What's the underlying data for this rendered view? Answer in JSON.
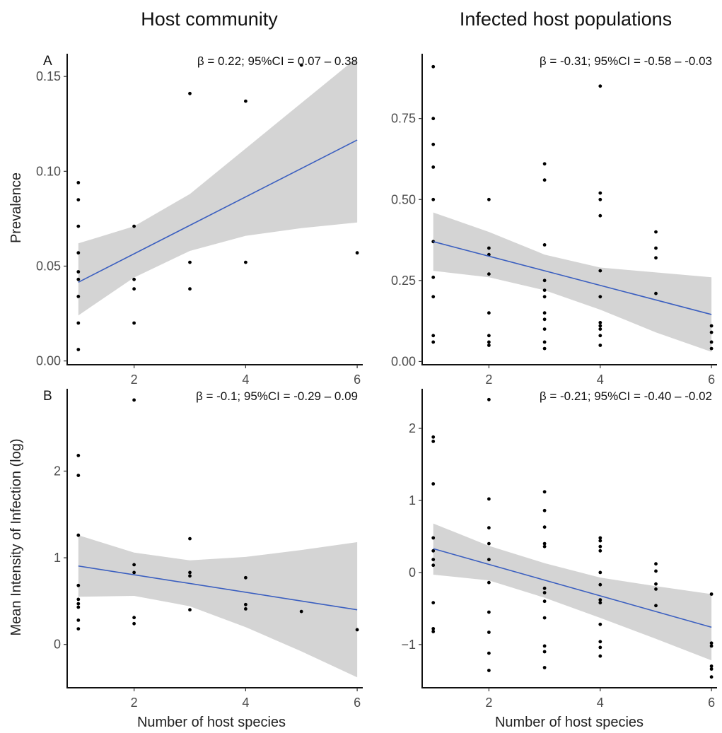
{
  "column_titles": [
    "Host community",
    "Infected host populations"
  ],
  "row_letters": [
    "A",
    "B"
  ],
  "y_axis_labels": [
    "Prevalence",
    "Mean Intensity of Infection (log)"
  ],
  "x_axis_label": "Number of host species",
  "colors": {
    "fit_line": "#3b5fc0",
    "ribbon": "#cccccc",
    "points": "#000000"
  },
  "chart_data": [
    {
      "type": "scatter",
      "panel": "A-left",
      "annotation": "β = 0.22; 95%CI = 0.07 – 0.38",
      "xlim": [
        0.8,
        6.1
      ],
      "ylim": [
        -0.002,
        0.162
      ],
      "x_ticks": [
        2,
        4,
        6
      ],
      "y_ticks": [
        0.0,
        0.05,
        0.1,
        0.15
      ],
      "y_tick_labels": [
        "0.00",
        "0.05",
        "0.10",
        "0.15"
      ],
      "x_tick_labels": [
        "2",
        "4",
        "6"
      ],
      "points": [
        [
          1,
          0.094
        ],
        [
          1,
          0.085
        ],
        [
          1,
          0.071
        ],
        [
          1,
          0.057
        ],
        [
          1,
          0.047
        ],
        [
          1,
          0.043
        ],
        [
          1,
          0.034
        ],
        [
          1,
          0.02
        ],
        [
          1,
          0.006
        ],
        [
          2,
          0.071
        ],
        [
          2,
          0.043
        ],
        [
          2,
          0.038
        ],
        [
          2,
          0.02
        ],
        [
          3,
          0.141
        ],
        [
          3,
          0.052
        ],
        [
          3,
          0.038
        ],
        [
          4,
          0.137
        ],
        [
          4,
          0.052
        ],
        [
          5,
          0.156
        ],
        [
          6,
          0.057
        ]
      ],
      "fit": {
        "x": [
          1,
          6
        ],
        "y": [
          0.0415,
          0.1165
        ]
      },
      "ci_lower": {
        "x": [
          1,
          2,
          3,
          4,
          5,
          6
        ],
        "y": [
          0.024,
          0.044,
          0.058,
          0.066,
          0.07,
          0.073
        ]
      },
      "ci_upper": {
        "x": [
          1,
          2,
          3,
          4,
          5,
          6
        ],
        "y": [
          0.062,
          0.071,
          0.088,
          0.112,
          0.136,
          0.16
        ]
      }
    },
    {
      "type": "scatter",
      "panel": "A-right",
      "annotation": "β = -0.31; 95%CI = -0.58 – -0.03",
      "xlim": [
        0.8,
        6.1
      ],
      "ylim": [
        -0.01,
        0.95
      ],
      "x_ticks": [
        2,
        4,
        6
      ],
      "y_ticks": [
        0.0,
        0.25,
        0.5,
        0.75
      ],
      "y_tick_labels": [
        "0.00",
        "0.25",
        "0.50",
        "0.75"
      ],
      "x_tick_labels": [
        "2",
        "4",
        "6"
      ],
      "points": [
        [
          1,
          0.91
        ],
        [
          1,
          0.75
        ],
        [
          1,
          0.67
        ],
        [
          1,
          0.6
        ],
        [
          1,
          0.5
        ],
        [
          1,
          0.37
        ],
        [
          1,
          0.26
        ],
        [
          1,
          0.2
        ],
        [
          1,
          0.08
        ],
        [
          1,
          0.06
        ],
        [
          2,
          0.5
        ],
        [
          2,
          0.35
        ],
        [
          2,
          0.33
        ],
        [
          2,
          0.27
        ],
        [
          2,
          0.15
        ],
        [
          2,
          0.08
        ],
        [
          2,
          0.06
        ],
        [
          2,
          0.05
        ],
        [
          3,
          0.61
        ],
        [
          3,
          0.56
        ],
        [
          3,
          0.36
        ],
        [
          3,
          0.25
        ],
        [
          3,
          0.22
        ],
        [
          3,
          0.2
        ],
        [
          3,
          0.15
        ],
        [
          3,
          0.13
        ],
        [
          3,
          0.1
        ],
        [
          3,
          0.06
        ],
        [
          3,
          0.04
        ],
        [
          4,
          0.85
        ],
        [
          4,
          0.52
        ],
        [
          4,
          0.5
        ],
        [
          4,
          0.45
        ],
        [
          4,
          0.28
        ],
        [
          4,
          0.2
        ],
        [
          4,
          0.12
        ],
        [
          4,
          0.11
        ],
        [
          4,
          0.1
        ],
        [
          4,
          0.08
        ],
        [
          4,
          0.05
        ],
        [
          5,
          0.4
        ],
        [
          5,
          0.35
        ],
        [
          5,
          0.32
        ],
        [
          5,
          0.21
        ],
        [
          6,
          0.11
        ],
        [
          6,
          0.09
        ],
        [
          6,
          0.06
        ],
        [
          6,
          0.04
        ]
      ],
      "fit": {
        "x": [
          1,
          6
        ],
        "y": [
          0.37,
          0.145
        ]
      },
      "ci_lower": {
        "x": [
          1,
          2,
          3,
          4,
          5,
          6
        ],
        "y": [
          0.28,
          0.26,
          0.22,
          0.16,
          0.09,
          0.03
        ]
      },
      "ci_upper": {
        "x": [
          1,
          2,
          3,
          4,
          5,
          6
        ],
        "y": [
          0.46,
          0.4,
          0.33,
          0.29,
          0.275,
          0.26
        ]
      }
    },
    {
      "type": "scatter",
      "panel": "B-left",
      "annotation": "β = -0.1; 95%CI = -0.29 – 0.09",
      "xlim": [
        0.8,
        6.1
      ],
      "ylim": [
        -0.5,
        2.95
      ],
      "x_ticks": [
        2,
        4,
        6
      ],
      "y_ticks": [
        0,
        1,
        2
      ],
      "y_tick_labels": [
        "0",
        "1",
        "2"
      ],
      "x_tick_labels": [
        "2",
        "4",
        "6"
      ],
      "points": [
        [
          1,
          2.18
        ],
        [
          1,
          1.95
        ],
        [
          1,
          1.26
        ],
        [
          1,
          0.68
        ],
        [
          1,
          0.52
        ],
        [
          1,
          0.47
        ],
        [
          1,
          0.43
        ],
        [
          1,
          0.28
        ],
        [
          1,
          0.18
        ],
        [
          2,
          2.82
        ],
        [
          2,
          0.92
        ],
        [
          2,
          0.83
        ],
        [
          2,
          0.31
        ],
        [
          2,
          0.24
        ],
        [
          3,
          1.22
        ],
        [
          3,
          0.83
        ],
        [
          3,
          0.79
        ],
        [
          3,
          0.4
        ],
        [
          4,
          0.77
        ],
        [
          4,
          0.46
        ],
        [
          4,
          0.41
        ],
        [
          5,
          0.38
        ],
        [
          6,
          0.17
        ]
      ],
      "fit": {
        "x": [
          1,
          6
        ],
        "y": [
          0.905,
          0.4
        ]
      },
      "ci_lower": {
        "x": [
          1,
          2,
          3,
          4,
          5,
          6
        ],
        "y": [
          0.55,
          0.56,
          0.44,
          0.2,
          -0.08,
          -0.38
        ]
      },
      "ci_upper": {
        "x": [
          1,
          2,
          3,
          4,
          5,
          6
        ],
        "y": [
          1.26,
          1.06,
          0.97,
          1.01,
          1.09,
          1.18
        ]
      }
    },
    {
      "type": "scatter",
      "panel": "B-right",
      "annotation": "β = -0.21; 95%CI = -0.40 – -0.02",
      "xlim": [
        0.8,
        6.1
      ],
      "ylim": [
        -1.6,
        2.55
      ],
      "x_ticks": [
        2,
        4,
        6
      ],
      "y_ticks": [
        -1,
        0,
        1,
        2
      ],
      "y_tick_labels": [
        "−1",
        "0",
        "1",
        "2"
      ],
      "x_tick_labels": [
        "2",
        "4",
        "6"
      ],
      "points": [
        [
          1,
          1.88
        ],
        [
          1,
          1.82
        ],
        [
          1,
          1.23
        ],
        [
          1,
          0.48
        ],
        [
          1,
          0.3
        ],
        [
          1,
          0.18
        ],
        [
          1,
          0.1
        ],
        [
          1,
          -0.42
        ],
        [
          1,
          -0.78
        ],
        [
          1,
          -0.82
        ],
        [
          2,
          2.4
        ],
        [
          2,
          1.02
        ],
        [
          2,
          0.62
        ],
        [
          2,
          0.4
        ],
        [
          2,
          0.18
        ],
        [
          2,
          -0.14
        ],
        [
          2,
          -0.55
        ],
        [
          2,
          -0.83
        ],
        [
          2,
          -1.12
        ],
        [
          2,
          -1.36
        ],
        [
          3,
          1.12
        ],
        [
          3,
          0.86
        ],
        [
          3,
          0.63
        ],
        [
          3,
          0.4
        ],
        [
          3,
          0.36
        ],
        [
          3,
          -0.22
        ],
        [
          3,
          -0.28
        ],
        [
          3,
          -0.4
        ],
        [
          3,
          -0.63
        ],
        [
          3,
          -1.02
        ],
        [
          3,
          -1.1
        ],
        [
          3,
          -1.32
        ],
        [
          4,
          0.48
        ],
        [
          4,
          0.44
        ],
        [
          4,
          0.36
        ],
        [
          4,
          0.3
        ],
        [
          4,
          0.0
        ],
        [
          4,
          -0.17
        ],
        [
          4,
          -0.38
        ],
        [
          4,
          -0.42
        ],
        [
          4,
          -0.72
        ],
        [
          4,
          -0.96
        ],
        [
          4,
          -1.04
        ],
        [
          4,
          -1.16
        ],
        [
          5,
          0.12
        ],
        [
          5,
          0.02
        ],
        [
          5,
          -0.16
        ],
        [
          5,
          -0.23
        ],
        [
          5,
          -0.46
        ],
        [
          6,
          -0.3
        ],
        [
          6,
          -0.98
        ],
        [
          6,
          -1.02
        ],
        [
          6,
          -1.3
        ],
        [
          6,
          -1.34
        ],
        [
          6,
          -1.45
        ]
      ],
      "fit": {
        "x": [
          1,
          6
        ],
        "y": [
          0.33,
          -0.76
        ]
      },
      "ci_lower": {
        "x": [
          1,
          2,
          3,
          4,
          5,
          6
        ],
        "y": [
          -0.03,
          -0.11,
          -0.35,
          -0.63,
          -0.92,
          -1.22
        ]
      },
      "ci_upper": {
        "x": [
          1,
          2,
          3,
          4,
          5,
          6
        ],
        "y": [
          0.68,
          0.37,
          0.13,
          -0.07,
          -0.19,
          -0.3
        ]
      }
    }
  ]
}
